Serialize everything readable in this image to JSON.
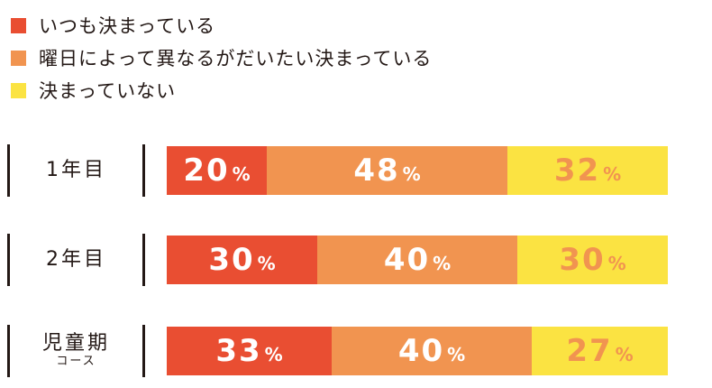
{
  "legend": [
    {
      "label": "いつも決まっている",
      "color": "#e94e32"
    },
    {
      "label": "曜日によって異なるがだいたい決まっている",
      "color": "#f19450"
    },
    {
      "label": "決まっていない",
      "color": "#fbe342"
    }
  ],
  "chart_data": {
    "type": "bar",
    "orientation": "horizontal",
    "stacked": true,
    "unit": "%",
    "categories": [
      {
        "label": "1年目",
        "sublabel": ""
      },
      {
        "label": "2年目",
        "sublabel": ""
      },
      {
        "label": "児童期",
        "sublabel": "コース"
      }
    ],
    "series": [
      {
        "name": "いつも決まっている",
        "color": "#e94e32",
        "text_color": "#ffffff",
        "values": [
          20,
          30,
          33
        ]
      },
      {
        "name": "曜日によって異なるがだいたい決まっている",
        "color": "#f19450",
        "text_color": "#ffffff",
        "values": [
          48,
          40,
          40
        ]
      },
      {
        "name": "決まっていない",
        "color": "#fbe342",
        "text_color": "#f19450",
        "values": [
          32,
          30,
          27
        ]
      }
    ],
    "xlim": [
      0,
      100
    ],
    "grid": false,
    "legend_position": "top-left"
  }
}
